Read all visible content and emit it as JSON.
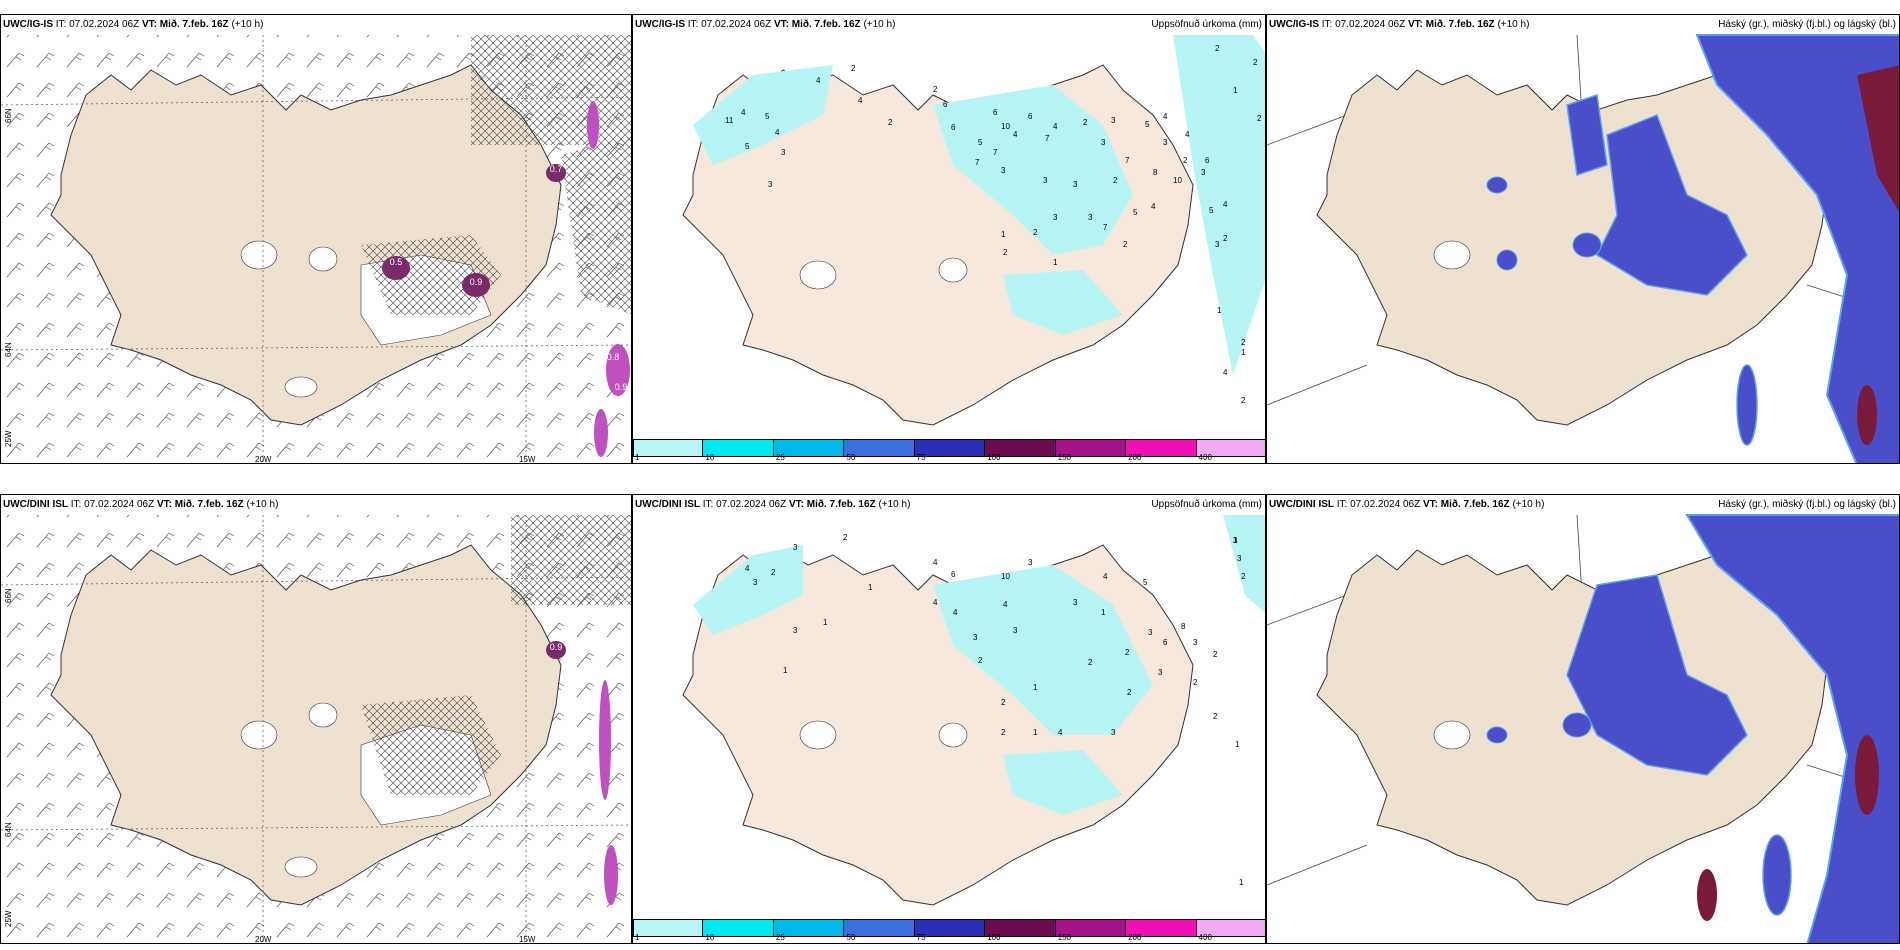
{
  "colors": {
    "land": "#efe1cf",
    "land_light": "#f6e8dc",
    "precip": "#b7f5f5",
    "blue_layer": "#4a4fc9",
    "blue_light": "#5aa0f0",
    "dark_red": "#7a1a3a",
    "magenta": "#c050c0",
    "hatch": "#333333"
  },
  "colorbar": {
    "colors": [
      "#b9f6f6",
      "#00e8ef",
      "#00b9ea",
      "#3b6fe0",
      "#2a2fb8",
      "#6e0a52",
      "#a3108a",
      "#ee10b4",
      "#f2aaf2"
    ],
    "labels": [
      "1",
      "10",
      "25",
      "50",
      "75",
      "100",
      "150",
      "200",
      "400"
    ]
  },
  "rows": [
    {
      "model": "UWC/IG-IS",
      "it_label": "IT: 07.02.2024 06Z",
      "vt_label": "VT: Mið. 7.feb. 16Z",
      "lead": "(+10 h)",
      "precip_title": "Uppsöfnuð úrkoma (mm)",
      "cloud_title": "Háský (gr.), miðský (fj.bl.) og lágský (bl.)",
      "precip_numbers": [
        "2",
        "4",
        "4",
        "11",
        "5",
        "4",
        "3",
        "5",
        "3",
        "4",
        "2",
        "2",
        "6",
        "6",
        "7",
        "7",
        "3",
        "4",
        "5",
        "6",
        "10",
        "6",
        "7",
        "4",
        "3",
        "2",
        "3",
        "3",
        "7",
        "5",
        "4",
        "3",
        "2",
        "8",
        "3",
        "2",
        "3",
        "3",
        "1",
        "2",
        "2",
        "1",
        "5",
        "10",
        "4",
        "7",
        "2",
        "4",
        "6",
        "3",
        "5",
        "4",
        "3",
        "2",
        "1",
        "2",
        "2",
        "2",
        "1",
        "2",
        "1",
        "4",
        "2"
      ],
      "map_values": [
        "0.5",
        "0.7",
        "0.9",
        "0.8",
        "0.9"
      ]
    },
    {
      "model": "UWC/DINI ISL",
      "it_label": "IT: 07.02.2024 06Z",
      "vt_label": "VT: Mið. 7.feb. 16Z",
      "lead": "(+10 h)",
      "precip_title": "Uppsöfnuð úrkoma (mm)",
      "cloud_title": "Háský (gr.), miðský (fj.bl.) og lágský (bl.)",
      "precip_numbers": [
        "2",
        "3",
        "4",
        "3",
        "1",
        "1",
        "3",
        "1",
        "2",
        "4",
        "6",
        "4",
        "10",
        "3",
        "4",
        "3",
        "4",
        "3",
        "2",
        "4",
        "3",
        "1",
        "2",
        "5",
        "3",
        "6",
        "8",
        "3",
        "2",
        "2",
        "2",
        "3",
        "2",
        "1",
        "1",
        "2",
        "2",
        "4",
        "2",
        "3",
        "3",
        "3",
        "2",
        "1",
        "1",
        "1"
      ],
      "map_values": [
        "0.9"
      ]
    }
  ],
  "axis_labels": {
    "lon_20": "20W",
    "lon_15": "15W",
    "lat_66": "66N",
    "lat_64": "64N",
    "lon_25": "25W"
  }
}
